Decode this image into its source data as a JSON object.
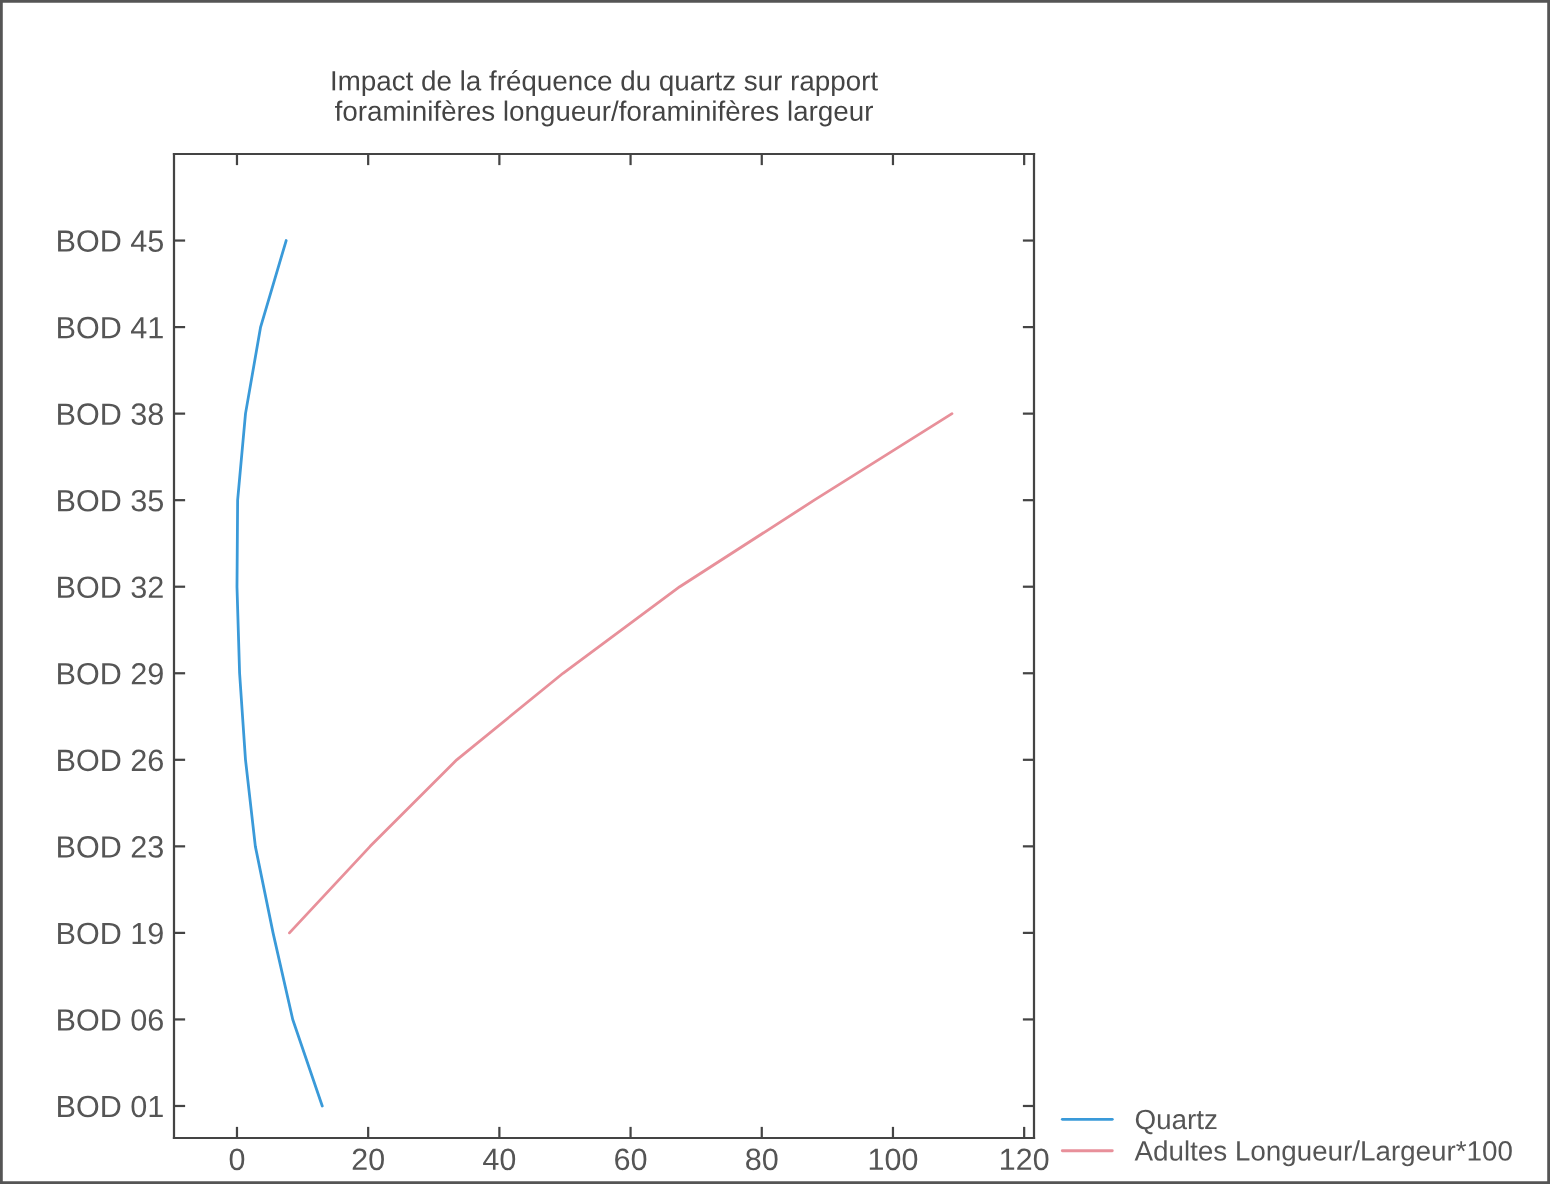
{
  "chart_data": {
    "type": "line",
    "orientation": "horizontal",
    "title": "Impact de la fréquence du quartz sur rapport\nforaminifères longueur/foraminifères largeur",
    "xlim": [
      -9.6,
      121.5
    ],
    "xticks": [
      0,
      20,
      40,
      60,
      80,
      100,
      120
    ],
    "categories": [
      "BOD 45",
      "BOD 41",
      "BOD 38",
      "BOD 35",
      "BOD 32",
      "BOD 29",
      "BOD 26",
      "BOD 23",
      "BOD 19",
      "BOD 06",
      "BOD 01"
    ],
    "legend": "right",
    "line_style": "solid",
    "series": [
      {
        "name": "Quartz",
        "color": "#3a9ad9",
        "values": [
          7.5,
          3.6,
          1.3,
          0.1,
          0,
          0.4,
          1.3,
          2.8,
          5.5,
          8.5,
          13
        ]
      },
      {
        "name": "Adultes Longueur/Largeur*100",
        "color": "#e8909a",
        "values": [
          null,
          null,
          109,
          88,
          67.5,
          49.7,
          33.5,
          20.3,
          8,
          null,
          null
        ]
      }
    ]
  }
}
